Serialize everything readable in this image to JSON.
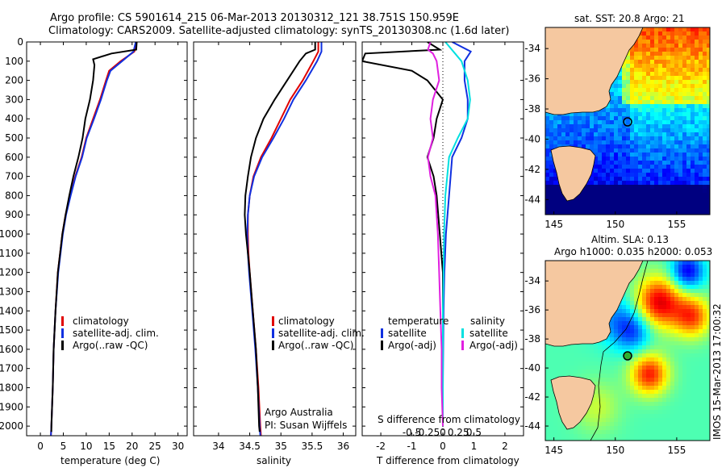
{
  "header": {
    "line1": "Argo profile: CS 5901614_215 06-Mar-2013 20130312_121 38.751S 150.959E",
    "line2": "Climatology: CARS2009. Satellite-adjusted climatology: synTS_20130308.nc (1.6d later)"
  },
  "colors": {
    "climatology": "#e00000",
    "satellite": "#1030e0",
    "argo": "#000000",
    "sat_salinity": "#00e0e0",
    "argo_salinity": "#e020e0",
    "land": "#f5c8a0"
  },
  "icons": {
    "legend_marker": "vertical-bar-icon",
    "argo_position": "circle-marker-icon"
  },
  "chart_data": [
    {
      "type": "line",
      "xlabel": "temperature (deg C)",
      "ylabel": "",
      "xlim": [
        -3,
        32
      ],
      "ylim": [
        2050,
        0
      ],
      "xticks": [
        0,
        5,
        10,
        15,
        20,
        25,
        30
      ],
      "yticks": [
        0,
        100,
        200,
        300,
        400,
        500,
        600,
        700,
        800,
        900,
        1000,
        1100,
        1200,
        1300,
        1400,
        1500,
        1600,
        1700,
        1800,
        1900,
        2000
      ],
      "legend": [
        "climatology",
        "satellite-adj. clim.",
        "Argo(..raw -QC)"
      ],
      "series": [
        {
          "name": "climatology",
          "depth": [
            0,
            50,
            100,
            150,
            200,
            300,
            400,
            500,
            600,
            700,
            800,
            900,
            1000,
            1200,
            1400,
            1600,
            1800,
            2000,
            2050
          ],
          "values": [
            21.0,
            20.5,
            17.5,
            15.0,
            14.3,
            13.0,
            11.5,
            10.0,
            9.0,
            7.6,
            6.5,
            5.5,
            4.8,
            3.8,
            3.3,
            2.9,
            2.7,
            2.4,
            2.3
          ]
        },
        {
          "name": "satellite-adj. clim.",
          "depth": [
            0,
            50,
            100,
            150,
            200,
            300,
            400,
            500,
            600,
            700,
            800,
            900,
            1000,
            1200,
            1400,
            1600,
            1800,
            2000,
            2050
          ],
          "values": [
            20.8,
            20.3,
            17.8,
            15.3,
            14.5,
            13.2,
            11.7,
            10.1,
            9.1,
            7.7,
            6.6,
            5.6,
            4.9,
            3.9,
            3.3,
            2.9,
            2.7,
            2.4,
            2.3
          ]
        },
        {
          "name": "Argo(..raw -QC)",
          "depth": [
            0,
            40,
            60,
            90,
            120,
            200,
            300,
            400,
            500,
            600,
            700,
            800,
            900,
            1000,
            1200,
            1400,
            1600,
            1800,
            2000,
            2030
          ],
          "values": [
            21.0,
            20.9,
            15.5,
            11.5,
            11.8,
            11.5,
            10.8,
            9.8,
            9.2,
            8.3,
            7.2,
            6.3,
            5.5,
            4.8,
            3.8,
            3.3,
            2.9,
            2.7,
            2.4,
            2.4
          ]
        }
      ]
    },
    {
      "type": "line",
      "xlabel": "salinity",
      "ylabel": "",
      "xlim": [
        33.6,
        36.2
      ],
      "ylim": [
        2050,
        0
      ],
      "xticks": [
        34,
        34.5,
        35,
        35.5,
        36
      ],
      "xticklabels": [
        "34",
        "34.5",
        "35",
        "35.5",
        "36"
      ],
      "legend": [
        "climatology",
        "satellite-adj. clim.",
        "Argo(..raw -QC)"
      ],
      "annotation": [
        "Argo Australia",
        "PI: Susan Wijffels"
      ],
      "series": [
        {
          "name": "climatology",
          "depth": [
            0,
            50,
            100,
            200,
            300,
            400,
            500,
            600,
            700,
            800,
            900,
            1000,
            1100,
            1200,
            1400,
            1600,
            1800,
            2000,
            2050
          ],
          "values": [
            35.6,
            35.6,
            35.52,
            35.35,
            35.15,
            35.0,
            34.85,
            34.68,
            34.56,
            34.5,
            34.47,
            34.47,
            34.48,
            34.5,
            34.55,
            34.6,
            34.64,
            34.67,
            34.68
          ]
        },
        {
          "name": "satellite-adj. clim.",
          "depth": [
            0,
            50,
            100,
            200,
            300,
            400,
            500,
            600,
            700,
            800,
            900,
            1000,
            1100,
            1200,
            1400,
            1600,
            1800,
            2000,
            2050
          ],
          "values": [
            35.65,
            35.65,
            35.58,
            35.4,
            35.2,
            35.05,
            34.88,
            34.7,
            34.57,
            34.5,
            34.47,
            34.46,
            34.47,
            34.49,
            34.54,
            34.59,
            34.63,
            34.66,
            34.67
          ]
        },
        {
          "name": "Argo(..raw -QC)",
          "depth": [
            0,
            40,
            60,
            100,
            200,
            300,
            400,
            500,
            600,
            700,
            800,
            900,
            1000,
            1100,
            1200,
            1400,
            1600,
            1800,
            2000,
            2030
          ],
          "values": [
            35.55,
            35.55,
            35.4,
            35.3,
            35.1,
            34.9,
            34.72,
            34.6,
            34.52,
            34.47,
            34.43,
            34.42,
            34.44,
            34.47,
            34.5,
            34.55,
            34.6,
            34.63,
            34.65,
            34.66
          ]
        }
      ]
    },
    {
      "type": "line",
      "xlabel": "T difference from climatology",
      "xlabel_top": "S difference from climatology",
      "xlim": [
        -2.6,
        2.6
      ],
      "ylim": [
        2050,
        0
      ],
      "xticks": [
        -2,
        -1,
        0,
        1,
        2
      ],
      "xticklabels_top": [
        "-0.5",
        "-0.25",
        "0",
        "0.25",
        "0.5"
      ],
      "legend_temperature": {
        "title": "temperature",
        "items": [
          "satellite",
          "Argo(-adj)"
        ]
      },
      "legend_salinity": {
        "title": "salinity",
        "items": [
          "satellite",
          "Argo(-adj)"
        ]
      },
      "series": [
        {
          "name": "satellite",
          "kind": "temperature",
          "depth": [
            0,
            50,
            100,
            200,
            300,
            400,
            500,
            600,
            800,
            1000,
            1200,
            1400,
            1600,
            1800,
            2000
          ],
          "values": [
            0.3,
            0.9,
            0.7,
            0.7,
            0.8,
            0.8,
            0.6,
            0.3,
            0.2,
            0.1,
            0.05,
            0.02,
            0.01,
            0.0,
            0.0
          ]
        },
        {
          "name": "Argo(-adj)",
          "kind": "temperature",
          "depth": [
            0,
            40,
            60,
            100,
            150,
            200,
            300,
            400,
            500,
            600,
            700,
            800,
            1000,
            1200,
            1400,
            1600,
            1800,
            2000
          ],
          "values": [
            -0.5,
            -0.1,
            -2.5,
            -2.6,
            -1.0,
            -0.5,
            0.0,
            -0.2,
            -0.3,
            -0.5,
            -0.3,
            -0.2,
            -0.1,
            0.0,
            0.0,
            0.0,
            0.0,
            0.0
          ]
        },
        {
          "name": "satellite",
          "kind": "salinity",
          "depth": [
            0,
            100,
            200,
            300,
            400,
            500,
            600,
            800,
            1000,
            1200,
            1400,
            1600,
            1800,
            2000
          ],
          "values": [
            0.02,
            0.15,
            0.2,
            0.22,
            0.2,
            0.12,
            0.05,
            0.02,
            0.01,
            0.005,
            0.0,
            0.0,
            0.0,
            0.0
          ]
        },
        {
          "name": "Argo(-adj)",
          "kind": "salinity",
          "depth": [
            0,
            40,
            60,
            100,
            200,
            300,
            400,
            500,
            600,
            700,
            800,
            900,
            1000,
            1200,
            1400,
            1600,
            1800,
            2000
          ],
          "values": [
            -0.1,
            -0.12,
            -0.08,
            -0.05,
            -0.03,
            -0.08,
            -0.1,
            -0.08,
            -0.12,
            -0.1,
            -0.06,
            -0.05,
            -0.04,
            -0.03,
            -0.02,
            -0.01,
            -0.01,
            0.0
          ]
        }
      ]
    },
    {
      "type": "heatmap",
      "title": "sat. SST: 20.8  Argo: 21",
      "xlim": [
        144.3,
        157.7
      ],
      "ylim": [
        -45,
        -32.6
      ],
      "xticks": [
        145,
        150,
        155
      ],
      "yticks": [
        -34,
        -36,
        -38,
        -40,
        -42,
        -44
      ],
      "argo_position": [
        150.959,
        -38.751
      ]
    },
    {
      "type": "heatmap",
      "title": "Altim. SLA: 0.13",
      "subtitle": "Argo h1000: 0.035 h2000: 0.053",
      "xlim": [
        144.3,
        157.7
      ],
      "ylim": [
        -45,
        -32.6
      ],
      "xticks": [
        145,
        150,
        155
      ],
      "yticks": [
        -34,
        -36,
        -38,
        -40,
        -42,
        -44
      ],
      "argo_position": [
        150.959,
        -38.751
      ]
    }
  ],
  "footer": {
    "credit": "IMOS 15-Mar-2013 17:00:32"
  }
}
